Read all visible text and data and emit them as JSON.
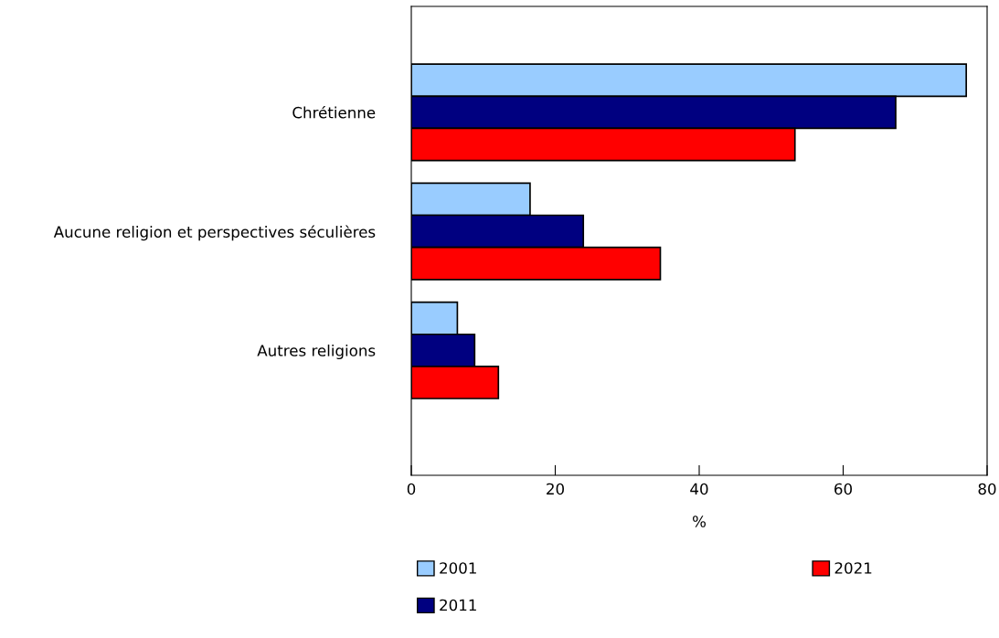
{
  "chart_data": {
    "type": "bar",
    "orientation": "horizontal",
    "xlabel": "%",
    "categories": [
      "Chrétienne",
      "Aucune religion et perspectives séculières",
      "Autres religions"
    ],
    "series": [
      {
        "name": "2001",
        "color": "#99ccff",
        "values": [
          77.1,
          16.5,
          6.4
        ]
      },
      {
        "name": "2011",
        "color": "#000080",
        "values": [
          67.3,
          23.9,
          8.8
        ]
      },
      {
        "name": "2021",
        "color": "#ff0000",
        "values": [
          53.3,
          34.6,
          12.1
        ]
      }
    ],
    "xlim": [
      0,
      80
    ],
    "xticks": [
      0,
      20,
      40,
      60,
      80
    ],
    "grid": false,
    "legend": "bottom"
  }
}
